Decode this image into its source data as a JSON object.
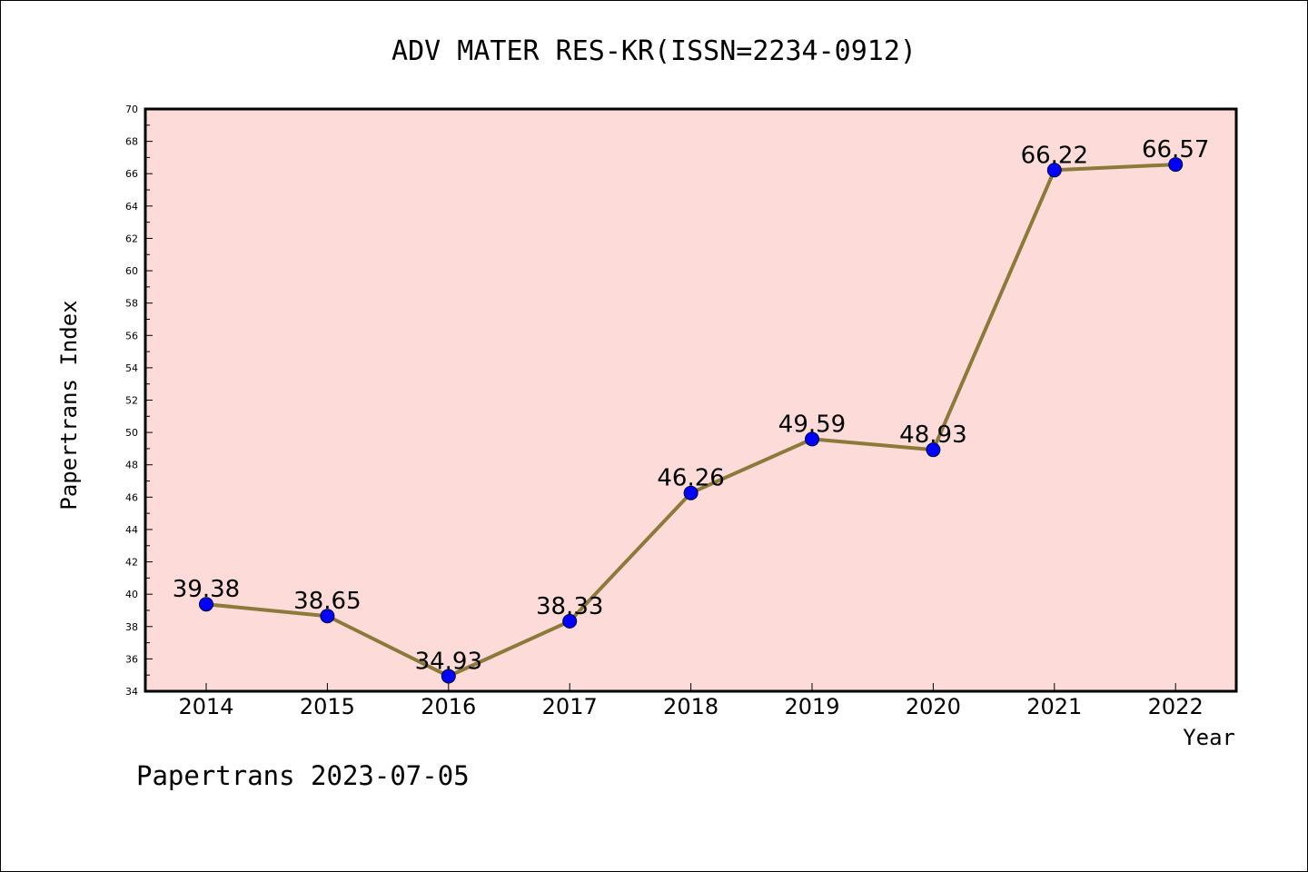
{
  "chart_data": {
    "type": "line",
    "title": "ADV MATER RES-KR(ISSN=2234-0912)",
    "xlabel": "Year",
    "ylabel": "Papertrans Index",
    "categories": [
      "2014",
      "2015",
      "2016",
      "2017",
      "2018",
      "2019",
      "2020",
      "2021",
      "2022"
    ],
    "series": [
      {
        "values": [
          39.38,
          38.65,
          34.93,
          38.33,
          46.26,
          49.59,
          48.93,
          66.22,
          66.57
        ]
      }
    ],
    "data_labels": [
      "39.38",
      "38.65",
      "34.93",
      "38.33",
      "46.26",
      "49.59",
      "48.93",
      "66.22",
      "66.57"
    ],
    "ylim": [
      34,
      70
    ],
    "yticks": [
      34,
      36,
      38,
      40,
      42,
      44,
      46,
      48,
      50,
      52,
      54,
      56,
      58,
      60,
      62,
      64,
      66,
      68,
      70
    ],
    "grid": false,
    "legend": "none",
    "colors": {
      "plot_background": "#fddbd9",
      "line": "#8b7a3a",
      "marker": "#0000ff",
      "axis": "#000000"
    }
  },
  "footer": "Papertrans 2023-07-05"
}
